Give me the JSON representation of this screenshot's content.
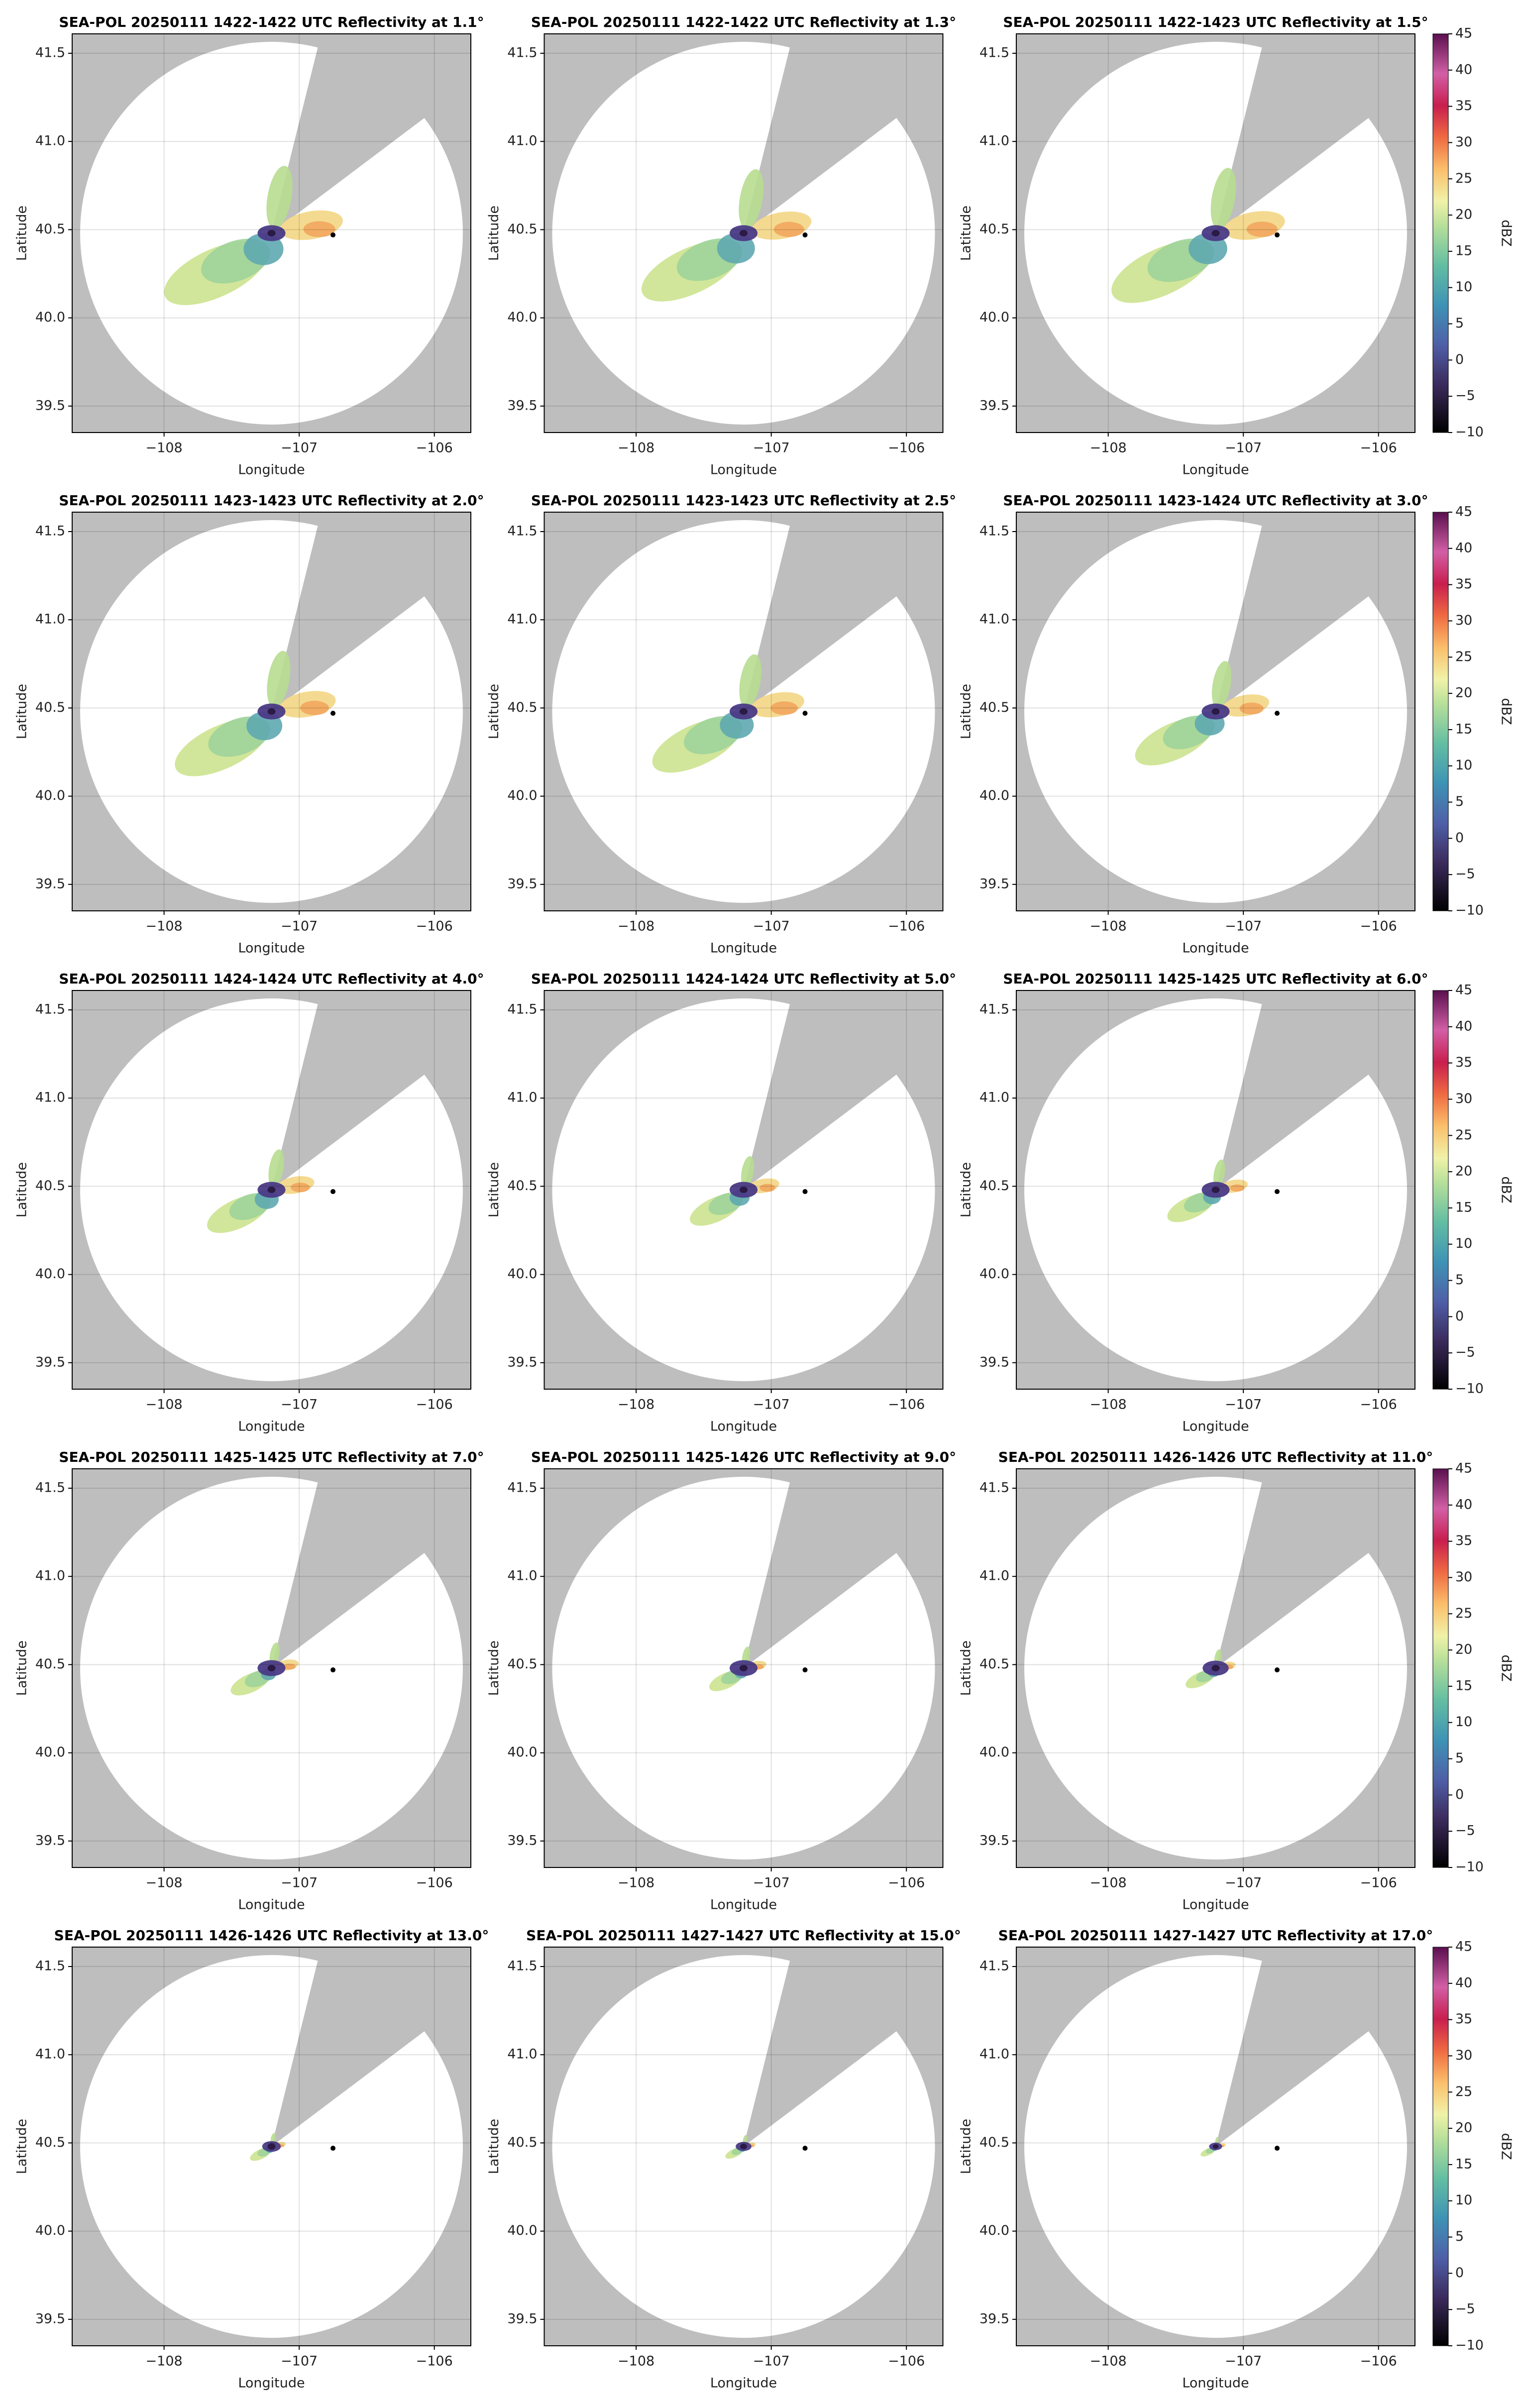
{
  "chart_data": [
    {
      "type": "radar-ppi",
      "title": "SEA-POL 20250111 1422-1422 UTC Reflectivity at 1.1°",
      "xlabel": "Longitude",
      "ylabel": "Latitude",
      "xlim": [
        -108.68,
        -105.73
      ],
      "ylim": [
        39.35,
        41.61
      ],
      "xticks": [
        {
          "value": -108,
          "label": "−108"
        },
        {
          "value": -107,
          "label": "−107"
        },
        {
          "value": -106,
          "label": "−106"
        }
      ],
      "yticks": [
        39.5,
        {
          "value": 40,
          "label": "40.0"
        },
        40.5,
        {
          "value": 41,
          "label": "41.0"
        },
        41.5
      ],
      "grid": true,
      "points": {
        "x": [
          -106.75
        ],
        "y": [
          40.47
        ],
        "color": "#000000"
      }
    },
    {
      "type": "radar-ppi",
      "title": "SEA-POL 20250111 1422-1422 UTC Reflectivity at 1.3°",
      "xlabel": "Longitude",
      "ylabel": "Latitude",
      "xlim": [
        -108.68,
        -105.73
      ],
      "ylim": [
        39.35,
        41.61
      ],
      "xticks": [
        {
          "value": -108,
          "label": "−108"
        },
        {
          "value": -107,
          "label": "−107"
        },
        {
          "value": -106,
          "label": "−106"
        }
      ],
      "yticks": [
        39.5,
        {
          "value": 40,
          "label": "40.0"
        },
        40.5,
        {
          "value": 41,
          "label": "41.0"
        },
        41.5
      ],
      "grid": true,
      "points": {
        "x": [
          -106.75
        ],
        "y": [
          40.47
        ],
        "color": "#000000"
      }
    },
    {
      "type": "radar-ppi",
      "title": "SEA-POL 20250111 1422-1423 UTC Reflectivity at 1.5°",
      "xlabel": "Longitude",
      "ylabel": "Latitude",
      "xlim": [
        -108.68,
        -105.73
      ],
      "ylim": [
        39.35,
        41.61
      ],
      "xticks": [
        {
          "value": -108,
          "label": "−108"
        },
        {
          "value": -107,
          "label": "−107"
        },
        {
          "value": -106,
          "label": "−106"
        }
      ],
      "yticks": [
        39.5,
        {
          "value": 40,
          "label": "40.0"
        },
        40.5,
        {
          "value": 41,
          "label": "41.0"
        },
        41.5
      ],
      "grid": true,
      "points": {
        "x": [
          -106.75
        ],
        "y": [
          40.47
        ],
        "color": "#000000"
      },
      "colorbar": {
        "label": "dBZ",
        "lim": [
          -10,
          45
        ],
        "ticks": [
          {
            "value": -10,
            "label": "−10"
          },
          {
            "value": -5,
            "label": "−5"
          },
          0,
          5,
          10,
          15,
          20,
          25,
          30,
          35,
          40,
          45
        ]
      }
    },
    {
      "type": "radar-ppi",
      "title": "SEA-POL 20250111 1423-1423 UTC Reflectivity at 2.0°",
      "xlabel": "Longitude",
      "ylabel": "Latitude",
      "xlim": [
        -108.68,
        -105.73
      ],
      "ylim": [
        39.35,
        41.61
      ],
      "xticks": [
        {
          "value": -108,
          "label": "−108"
        },
        {
          "value": -107,
          "label": "−107"
        },
        {
          "value": -106,
          "label": "−106"
        }
      ],
      "yticks": [
        39.5,
        {
          "value": 40,
          "label": "40.0"
        },
        40.5,
        {
          "value": 41,
          "label": "41.0"
        },
        41.5
      ],
      "grid": true,
      "points": {
        "x": [
          -106.75
        ],
        "y": [
          40.47
        ],
        "color": "#000000"
      }
    },
    {
      "type": "radar-ppi",
      "title": "SEA-POL 20250111 1423-1423 UTC Reflectivity at 2.5°",
      "xlabel": "Longitude",
      "ylabel": "Latitude",
      "xlim": [
        -108.68,
        -105.73
      ],
      "ylim": [
        39.35,
        41.61
      ],
      "xticks": [
        {
          "value": -108,
          "label": "−108"
        },
        {
          "value": -107,
          "label": "−107"
        },
        {
          "value": -106,
          "label": "−106"
        }
      ],
      "yticks": [
        39.5,
        {
          "value": 40,
          "label": "40.0"
        },
        40.5,
        {
          "value": 41,
          "label": "41.0"
        },
        41.5
      ],
      "grid": true,
      "points": {
        "x": [
          -106.75
        ],
        "y": [
          40.47
        ],
        "color": "#000000"
      }
    },
    {
      "type": "radar-ppi",
      "title": "SEA-POL 20250111 1423-1424 UTC Reflectivity at 3.0°",
      "xlabel": "Longitude",
      "ylabel": "Latitude",
      "xlim": [
        -108.68,
        -105.73
      ],
      "ylim": [
        39.35,
        41.61
      ],
      "xticks": [
        {
          "value": -108,
          "label": "−108"
        },
        {
          "value": -107,
          "label": "−107"
        },
        {
          "value": -106,
          "label": "−106"
        }
      ],
      "yticks": [
        39.5,
        {
          "value": 40,
          "label": "40.0"
        },
        40.5,
        {
          "value": 41,
          "label": "41.0"
        },
        41.5
      ],
      "grid": true,
      "points": {
        "x": [
          -106.75
        ],
        "y": [
          40.47
        ],
        "color": "#000000"
      },
      "colorbar": {
        "label": "dBZ",
        "lim": [
          -10,
          45
        ],
        "ticks": [
          {
            "value": -10,
            "label": "−10"
          },
          {
            "value": -5,
            "label": "−5"
          },
          0,
          5,
          10,
          15,
          20,
          25,
          30,
          35,
          40,
          45
        ]
      }
    },
    {
      "type": "radar-ppi",
      "title": "SEA-POL 20250111 1424-1424 UTC Reflectivity at 4.0°",
      "xlabel": "Longitude",
      "ylabel": "Latitude",
      "xlim": [
        -108.68,
        -105.73
      ],
      "ylim": [
        39.35,
        41.61
      ],
      "xticks": [
        {
          "value": -108,
          "label": "−108"
        },
        {
          "value": -107,
          "label": "−107"
        },
        {
          "value": -106,
          "label": "−106"
        }
      ],
      "yticks": [
        39.5,
        {
          "value": 40,
          "label": "40.0"
        },
        40.5,
        {
          "value": 41,
          "label": "41.0"
        },
        41.5
      ],
      "grid": true,
      "points": {
        "x": [
          -106.75
        ],
        "y": [
          40.47
        ],
        "color": "#000000"
      }
    },
    {
      "type": "radar-ppi",
      "title": "SEA-POL 20250111 1424-1424 UTC Reflectivity at 5.0°",
      "xlabel": "Longitude",
      "ylabel": "Latitude",
      "xlim": [
        -108.68,
        -105.73
      ],
      "ylim": [
        39.35,
        41.61
      ],
      "xticks": [
        {
          "value": -108,
          "label": "−108"
        },
        {
          "value": -107,
          "label": "−107"
        },
        {
          "value": -106,
          "label": "−106"
        }
      ],
      "yticks": [
        39.5,
        {
          "value": 40,
          "label": "40.0"
        },
        40.5,
        {
          "value": 41,
          "label": "41.0"
        },
        41.5
      ],
      "grid": true,
      "points": {
        "x": [
          -106.75
        ],
        "y": [
          40.47
        ],
        "color": "#000000"
      }
    },
    {
      "type": "radar-ppi",
      "title": "SEA-POL 20250111 1425-1425 UTC Reflectivity at 6.0°",
      "xlabel": "Longitude",
      "ylabel": "Latitude",
      "xlim": [
        -108.68,
        -105.73
      ],
      "ylim": [
        39.35,
        41.61
      ],
      "xticks": [
        {
          "value": -108,
          "label": "−108"
        },
        {
          "value": -107,
          "label": "−107"
        },
        {
          "value": -106,
          "label": "−106"
        }
      ],
      "yticks": [
        39.5,
        {
          "value": 40,
          "label": "40.0"
        },
        40.5,
        {
          "value": 41,
          "label": "41.0"
        },
        41.5
      ],
      "grid": true,
      "points": {
        "x": [
          -106.75
        ],
        "y": [
          40.47
        ],
        "color": "#000000"
      },
      "colorbar": {
        "label": "dBZ",
        "lim": [
          -10,
          45
        ],
        "ticks": [
          {
            "value": -10,
            "label": "−10"
          },
          {
            "value": -5,
            "label": "−5"
          },
          0,
          5,
          10,
          15,
          20,
          25,
          30,
          35,
          40,
          45
        ]
      }
    },
    {
      "type": "radar-ppi",
      "title": "SEA-POL 20250111 1425-1425 UTC Reflectivity at 7.0°",
      "xlabel": "Longitude",
      "ylabel": "Latitude",
      "xlim": [
        -108.68,
        -105.73
      ],
      "ylim": [
        39.35,
        41.61
      ],
      "xticks": [
        {
          "value": -108,
          "label": "−108"
        },
        {
          "value": -107,
          "label": "−107"
        },
        {
          "value": -106,
          "label": "−106"
        }
      ],
      "yticks": [
        39.5,
        {
          "value": 40,
          "label": "40.0"
        },
        40.5,
        {
          "value": 41,
          "label": "41.0"
        },
        41.5
      ],
      "grid": true,
      "points": {
        "x": [
          -106.75
        ],
        "y": [
          40.47
        ],
        "color": "#000000"
      }
    },
    {
      "type": "radar-ppi",
      "title": "SEA-POL 20250111 1425-1426 UTC Reflectivity at 9.0°",
      "xlabel": "Longitude",
      "ylabel": "Latitude",
      "xlim": [
        -108.68,
        -105.73
      ],
      "ylim": [
        39.35,
        41.61
      ],
      "xticks": [
        {
          "value": -108,
          "label": "−108"
        },
        {
          "value": -107,
          "label": "−107"
        },
        {
          "value": -106,
          "label": "−106"
        }
      ],
      "yticks": [
        39.5,
        {
          "value": 40,
          "label": "40.0"
        },
        40.5,
        {
          "value": 41,
          "label": "41.0"
        },
        41.5
      ],
      "grid": true,
      "points": {
        "x": [
          -106.75
        ],
        "y": [
          40.47
        ],
        "color": "#000000"
      }
    },
    {
      "type": "radar-ppi",
      "title": "SEA-POL 20250111 1426-1426 UTC Reflectivity at 11.0°",
      "xlabel": "Longitude",
      "ylabel": "Latitude",
      "xlim": [
        -108.68,
        -105.73
      ],
      "ylim": [
        39.35,
        41.61
      ],
      "xticks": [
        {
          "value": -108,
          "label": "−108"
        },
        {
          "value": -107,
          "label": "−107"
        },
        {
          "value": -106,
          "label": "−106"
        }
      ],
      "yticks": [
        39.5,
        {
          "value": 40,
          "label": "40.0"
        },
        40.5,
        {
          "value": 41,
          "label": "41.0"
        },
        41.5
      ],
      "grid": true,
      "points": {
        "x": [
          -106.75
        ],
        "y": [
          40.47
        ],
        "color": "#000000"
      },
      "colorbar": {
        "label": "dBZ",
        "lim": [
          -10,
          45
        ],
        "ticks": [
          {
            "value": -10,
            "label": "−10"
          },
          {
            "value": -5,
            "label": "−5"
          },
          0,
          5,
          10,
          15,
          20,
          25,
          30,
          35,
          40,
          45
        ]
      }
    },
    {
      "type": "radar-ppi",
      "title": "SEA-POL 20250111 1426-1426 UTC Reflectivity at 13.0°",
      "xlabel": "Longitude",
      "ylabel": "Latitude",
      "xlim": [
        -108.68,
        -105.73
      ],
      "ylim": [
        39.35,
        41.61
      ],
      "xticks": [
        {
          "value": -108,
          "label": "−108"
        },
        {
          "value": -107,
          "label": "−107"
        },
        {
          "value": -106,
          "label": "−106"
        }
      ],
      "yticks": [
        39.5,
        {
          "value": 40,
          "label": "40.0"
        },
        40.5,
        {
          "value": 41,
          "label": "41.0"
        },
        41.5
      ],
      "grid": true,
      "points": {
        "x": [
          -106.75
        ],
        "y": [
          40.47
        ],
        "color": "#000000"
      }
    },
    {
      "type": "radar-ppi",
      "title": "SEA-POL 20250111 1427-1427 UTC Reflectivity at 15.0°",
      "xlabel": "Longitude",
      "ylabel": "Latitude",
      "xlim": [
        -108.68,
        -105.73
      ],
      "ylim": [
        39.35,
        41.61
      ],
      "xticks": [
        {
          "value": -108,
          "label": "−108"
        },
        {
          "value": -107,
          "label": "−107"
        },
        {
          "value": -106,
          "label": "−106"
        }
      ],
      "yticks": [
        39.5,
        {
          "value": 40,
          "label": "40.0"
        },
        40.5,
        {
          "value": 41,
          "label": "41.0"
        },
        41.5
      ],
      "grid": true,
      "points": {
        "x": [
          -106.75
        ],
        "y": [
          40.47
        ],
        "color": "#000000"
      }
    },
    {
      "type": "radar-ppi",
      "title": "SEA-POL 20250111 1427-1427 UTC Reflectivity at 17.0°",
      "xlabel": "Longitude",
      "ylabel": "Latitude",
      "xlim": [
        -108.68,
        -105.73
      ],
      "ylim": [
        39.35,
        41.61
      ],
      "xticks": [
        {
          "value": -108,
          "label": "−108"
        },
        {
          "value": -107,
          "label": "−107"
        },
        {
          "value": -106,
          "label": "−106"
        }
      ],
      "yticks": [
        39.5,
        {
          "value": 40,
          "label": "40.0"
        },
        40.5,
        {
          "value": 41,
          "label": "41.0"
        },
        41.5
      ],
      "grid": true,
      "points": {
        "x": [
          -106.75
        ],
        "y": [
          40.47
        ],
        "color": "#000000"
      },
      "colorbar": {
        "label": "dBZ",
        "lim": [
          -10,
          45
        ],
        "ticks": [
          {
            "value": -10,
            "label": "−10"
          },
          {
            "value": -5,
            "label": "−5"
          },
          0,
          5,
          10,
          15,
          20,
          25,
          30,
          35,
          40,
          45
        ]
      }
    }
  ]
}
